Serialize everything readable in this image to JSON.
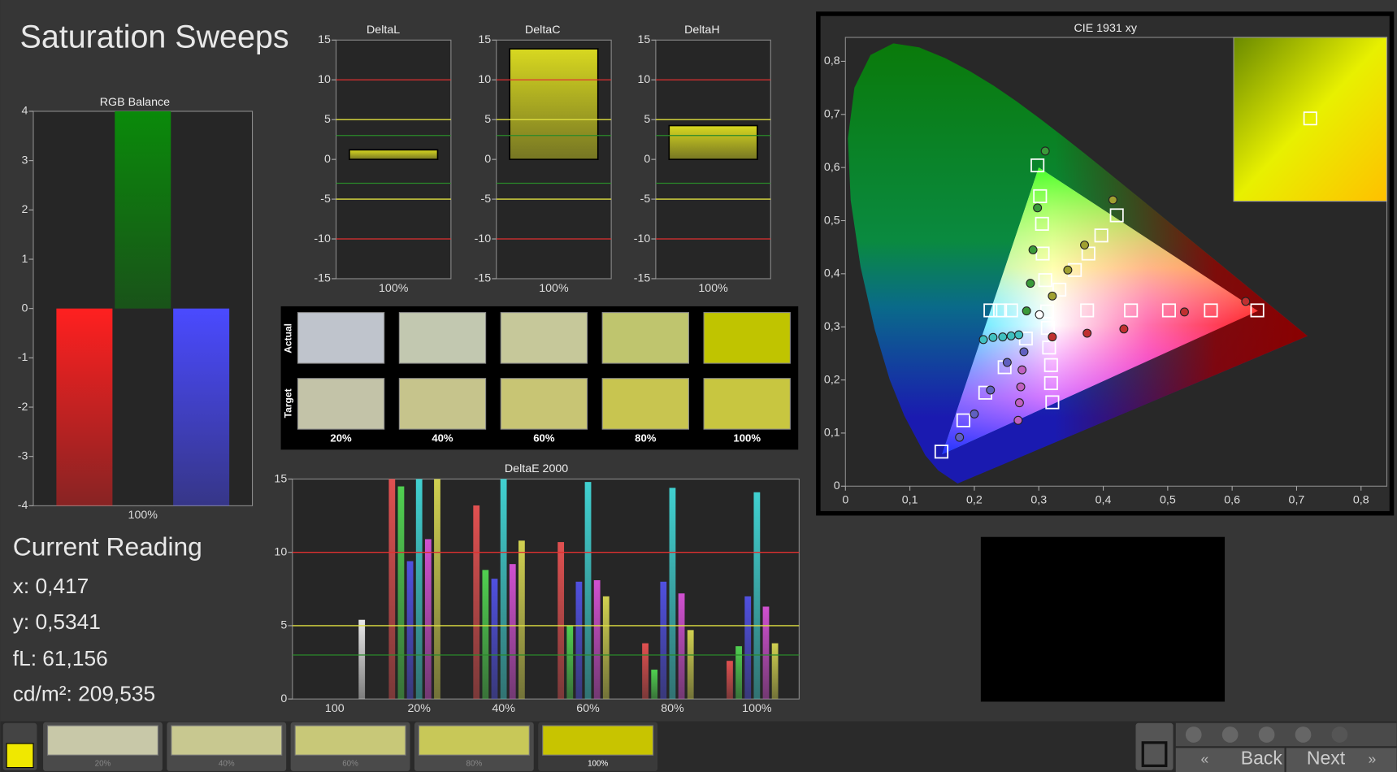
{
  "title": "Saturation Sweeps",
  "current_reading": {
    "heading": "Current Reading",
    "lines": [
      "x: 0,417",
      "y: 0,5341",
      "fL: 61,156",
      "cd/m²: 209,535"
    ]
  },
  "swatches": {
    "rows": [
      "Actual",
      "Target"
    ],
    "columns": [
      "20%",
      "40%",
      "60%",
      "80%",
      "100%"
    ],
    "actual_colors": [
      "#bfc4cc",
      "#c2c8b0",
      "#c6c89a",
      "#bfc56e",
      "#c0c400"
    ],
    "target_colors": [
      "#c3c3a8",
      "#c6c48c",
      "#c8c574",
      "#c8c550",
      "#c8c640"
    ]
  },
  "footer": {
    "thumbnails": [
      "20%",
      "40%",
      "60%",
      "80%",
      "100%"
    ],
    "thumbnail_colors": [
      "#c8c8a8",
      "#c8c890",
      "#c8c878",
      "#c8c858",
      "#c8c400"
    ],
    "back": "Back",
    "next": "Next"
  },
  "chart_data": [
    {
      "type": "bar",
      "title": "RGB Balance",
      "categories": [
        "100%"
      ],
      "series": [
        {
          "color": "#ff2020",
          "values": [
            -4
          ]
        },
        {
          "color": "#0a8a0a",
          "values": [
            4
          ]
        },
        {
          "color": "#4a4aff",
          "values": [
            -4
          ]
        }
      ],
      "ylim": [
        -4,
        4
      ],
      "yticks": [
        -4,
        -3,
        -2,
        -1,
        0,
        1,
        2,
        3,
        4
      ]
    },
    {
      "type": "bar",
      "title": "DeltaL",
      "categories": [
        "100%"
      ],
      "values": [
        1.2
      ],
      "color": "#d8d820",
      "ylim": [
        -15,
        15
      ],
      "yticks": [
        -15,
        -10,
        -5,
        0,
        5,
        10,
        15
      ],
      "reference_lines": [
        {
          "value": 10,
          "color": "#e03030"
        },
        {
          "value": 5,
          "color": "#e0e040"
        },
        {
          "value": 3,
          "color": "#2a8a2a"
        },
        {
          "value": -3,
          "color": "#2a8a2a"
        },
        {
          "value": -5,
          "color": "#e0e040"
        },
        {
          "value": -10,
          "color": "#e03030"
        }
      ]
    },
    {
      "type": "bar",
      "title": "DeltaC",
      "categories": [
        "100%"
      ],
      "values": [
        13.9
      ],
      "color": "#d8d820",
      "ylim": [
        -15,
        15
      ],
      "yticks": [
        -15,
        -10,
        -5,
        0,
        5,
        10,
        15
      ],
      "reference_lines": [
        {
          "value": 10,
          "color": "#e03030"
        },
        {
          "value": 5,
          "color": "#e0e040"
        },
        {
          "value": 3,
          "color": "#2a8a2a"
        },
        {
          "value": -3,
          "color": "#2a8a2a"
        },
        {
          "value": -5,
          "color": "#e0e040"
        },
        {
          "value": -10,
          "color": "#e03030"
        }
      ]
    },
    {
      "type": "bar",
      "title": "DeltaH",
      "categories": [
        "100%"
      ],
      "values": [
        4.25
      ],
      "color": "#d8d820",
      "ylim": [
        -15,
        15
      ],
      "yticks": [
        -15,
        -10,
        -5,
        0,
        5,
        10,
        15
      ],
      "reference_lines": [
        {
          "value": 10,
          "color": "#e03030"
        },
        {
          "value": 5,
          "color": "#e0e040"
        },
        {
          "value": 3,
          "color": "#2a8a2a"
        },
        {
          "value": -3,
          "color": "#2a8a2a"
        },
        {
          "value": -5,
          "color": "#e0e040"
        },
        {
          "value": -10,
          "color": "#e03030"
        }
      ]
    },
    {
      "type": "bar",
      "title": "DeltaE 2000",
      "categories": [
        "100",
        "20%",
        "40%",
        "60%",
        "80%",
        "100%"
      ],
      "series": [
        {
          "color": "#e05050",
          "values": [
            null,
            15,
            13.2,
            10.7,
            3.8,
            2.6
          ]
        },
        {
          "color": "#50d050",
          "values": [
            null,
            14.5,
            8.8,
            5.0,
            2.0,
            3.6
          ]
        },
        {
          "color": "#5050e0",
          "values": [
            null,
            9.4,
            8.2,
            8.0,
            8.0,
            7.0
          ]
        },
        {
          "color": "#40d0d0",
          "values": [
            null,
            15,
            15,
            14.8,
            14.4,
            14.1
          ]
        },
        {
          "color": "#d050d0",
          "values": [
            null,
            10.9,
            9.2,
            8.1,
            7.2,
            6.3
          ]
        },
        {
          "color": "#d0d050",
          "values": [
            null,
            15,
            10.8,
            7.0,
            4.7,
            3.8
          ]
        },
        {
          "color": "#e8e8e8",
          "values": [
            5.4,
            null,
            null,
            null,
            null,
            null
          ]
        }
      ],
      "ylim": [
        0,
        15
      ],
      "yticks": [
        0,
        5,
        10,
        15
      ],
      "reference_lines": [
        {
          "value": 10,
          "color": "#e03030"
        },
        {
          "value": 5,
          "color": "#e0e040"
        },
        {
          "value": 3,
          "color": "#2a8a2a"
        }
      ]
    },
    {
      "type": "scatter",
      "title": "CIE 1931 xy",
      "xlim": [
        0,
        0.84
      ],
      "ylim": [
        0,
        0.845
      ],
      "xticks": [
        0,
        {
          "value": 0.1,
          "label": "0,1"
        },
        {
          "value": 0.2,
          "label": "0,2"
        },
        {
          "value": 0.3,
          "label": "0,3"
        },
        {
          "value": 0.4,
          "label": "0,4"
        },
        {
          "value": 0.5,
          "label": "0,5"
        },
        {
          "value": 0.6,
          "label": "0,6"
        },
        {
          "value": 0.7,
          "label": "0,7"
        },
        {
          "value": 0.8,
          "label": "0,8"
        }
      ],
      "yticks": [
        0,
        {
          "value": 0.1,
          "label": "0,1"
        },
        {
          "value": 0.2,
          "label": "0,2"
        },
        {
          "value": 0.3,
          "label": "0,3"
        },
        {
          "value": 0.4,
          "label": "0,4"
        },
        {
          "value": 0.5,
          "label": "0,5"
        },
        {
          "value": 0.6,
          "label": "0,6"
        },
        {
          "value": 0.7,
          "label": "0,7"
        },
        {
          "value": 0.8,
          "label": "0,8"
        }
      ],
      "series": [
        {
          "marker": "square",
          "color": "#ffffff",
          "x": [
            0.298,
            0.302,
            0.305,
            0.306,
            0.31,
            0.332,
            0.356,
            0.377,
            0.397,
            0.421,
            0.375,
            0.443,
            0.502,
            0.567,
            0.639,
            0.225,
            0.24,
            0.257,
            0.28,
            0.247,
            0.217,
            0.183,
            0.149,
            0.314,
            0.316,
            0.319,
            0.319,
            0.321,
            0.313
          ],
          "y": [
            0.604,
            0.546,
            0.494,
            0.438,
            0.388,
            0.37,
            0.407,
            0.438,
            0.472,
            0.51,
            0.331,
            0.331,
            0.331,
            0.331,
            0.331,
            0.331,
            0.331,
            0.331,
            0.278,
            0.224,
            0.176,
            0.124,
            0.065,
            0.298,
            0.261,
            0.228,
            0.194,
            0.158,
            0.329
          ]
        },
        {
          "marker": "circle",
          "color": "#3a9a3a",
          "x": [
            0.31,
            0.298,
            0.291,
            0.287,
            0.281
          ],
          "y": [
            0.631,
            0.524,
            0.445,
            0.382,
            0.33
          ]
        },
        {
          "marker": "circle",
          "color": "#a0a030",
          "x": [
            0.415,
            0.371,
            0.345,
            0.321
          ],
          "y": [
            0.539,
            0.454,
            0.407,
            0.358
          ]
        },
        {
          "marker": "circle",
          "color": "#c03030",
          "x": [
            0.621,
            0.526,
            0.432,
            0.375,
            0.321
          ],
          "y": [
            0.348,
            0.328,
            0.296,
            0.288,
            0.281
          ]
        },
        {
          "marker": "circle",
          "color": "#40c0c0",
          "x": [
            0.214,
            0.229,
            0.244,
            0.257,
            0.269
          ],
          "y": [
            0.276,
            0.28,
            0.281,
            0.283,
            0.285
          ]
        },
        {
          "marker": "circle",
          "color": "#6060c0",
          "x": [
            0.277,
            0.251,
            0.225,
            0.2,
            0.177
          ],
          "y": [
            0.253,
            0.233,
            0.181,
            0.136,
            0.092
          ]
        },
        {
          "marker": "circle",
          "color": "#c060c0",
          "x": [
            0.274,
            0.272,
            0.27,
            0.268
          ],
          "y": [
            0.219,
            0.187,
            0.157,
            0.124
          ]
        },
        {
          "marker": "circle",
          "color": "#ffffff",
          "x": [
            0.301
          ],
          "y": [
            0.323
          ]
        }
      ]
    }
  ]
}
